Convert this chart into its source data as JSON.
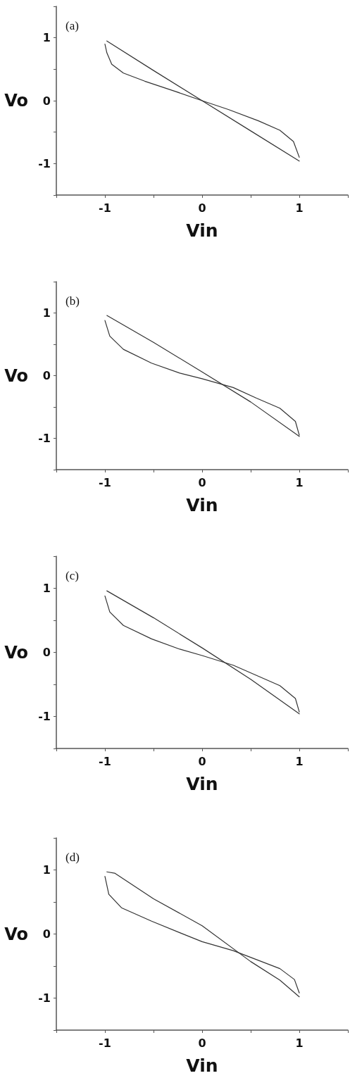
{
  "chart_data": [
    {
      "type": "line",
      "title": "(a)",
      "xlabel": "Vin",
      "ylabel": "Vo",
      "xlim": [
        -1.5,
        1.5
      ],
      "ylim": [
        -1.5,
        1.5
      ],
      "xticks": [
        {
          "value": -1.5,
          "label": null
        },
        -1,
        {
          "value": -0.5,
          "label": null
        },
        0,
        {
          "value": 0.5,
          "label": null
        },
        1,
        {
          "value": 1.5,
          "label": null
        }
      ],
      "yticks": [
        {
          "value": -1.5,
          "label": null
        },
        -1,
        {
          "value": -0.5,
          "label": null
        },
        0,
        {
          "value": 0.5,
          "label": null
        },
        1,
        {
          "value": 1.5,
          "label": null
        }
      ],
      "series": [
        {
          "color": "#333333",
          "x": [
            -0.98,
            -0.5,
            0,
            0.5,
            1.0
          ],
          "values": [
            0.95,
            0.48,
            0,
            -0.48,
            -0.96
          ]
        },
        {
          "color": "#333333",
          "x": [
            1.0,
            0.94,
            0.8,
            0.58,
            0.27,
            0,
            -0.28,
            -0.59,
            -0.81,
            -0.93,
            -0.98,
            -1.0
          ],
          "values": [
            -0.9,
            -0.65,
            -0.47,
            -0.32,
            -0.14,
            0,
            0.15,
            0.31,
            0.44,
            0.58,
            0.76,
            0.9
          ]
        }
      ]
    },
    {
      "type": "line",
      "title": "(b)",
      "xlabel": "Vin",
      "ylabel": "Vo",
      "xlim": [
        -1.5,
        1.5
      ],
      "ylim": [
        -1.5,
        1.5
      ],
      "xticks": [
        {
          "value": -1.5,
          "label": null
        },
        -1,
        {
          "value": -0.5,
          "label": null
        },
        0,
        {
          "value": 0.5,
          "label": null
        },
        1,
        {
          "value": 1.5,
          "label": null
        }
      ],
      "yticks": [
        {
          "value": -1.5,
          "label": null
        },
        -1,
        {
          "value": -0.5,
          "label": null
        },
        0,
        {
          "value": 0.5,
          "label": null
        },
        1,
        {
          "value": 1.5,
          "label": null
        }
      ],
      "series": [
        {
          "color": "#333333",
          "x": [
            -0.98,
            -0.5,
            0,
            0.5,
            1.0
          ],
          "values": [
            0.96,
            0.53,
            0.06,
            -0.42,
            -0.97
          ]
        },
        {
          "color": "#333333",
          "x": [
            1.0,
            0.96,
            0.8,
            0.56,
            0.32,
            0,
            -0.23,
            -0.52,
            -0.81,
            -0.95,
            -1.0
          ],
          "values": [
            -0.95,
            -0.73,
            -0.52,
            -0.36,
            -0.19,
            -0.05,
            0.04,
            0.2,
            0.42,
            0.63,
            0.88
          ]
        }
      ]
    },
    {
      "type": "line",
      "title": "(c)",
      "xlabel": "Vin",
      "ylabel": "Vo",
      "xlim": [
        -1.5,
        1.5
      ],
      "ylim": [
        -1.5,
        1.5
      ],
      "xticks": [
        {
          "value": -1.5,
          "label": null
        },
        -1,
        {
          "value": -0.5,
          "label": null
        },
        0,
        {
          "value": 0.5,
          "label": null
        },
        1,
        {
          "value": 1.5,
          "label": null
        }
      ],
      "yticks": [
        {
          "value": -1.5,
          "label": null
        },
        -1,
        {
          "value": -0.5,
          "label": null
        },
        0,
        {
          "value": 0.5,
          "label": null
        },
        1,
        {
          "value": 1.5,
          "label": null
        }
      ],
      "series": [
        {
          "color": "#333333",
          "x": [
            -0.98,
            -0.5,
            0,
            0.5,
            1.0
          ],
          "values": [
            0.96,
            0.54,
            0.07,
            -0.42,
            -0.96
          ]
        },
        {
          "color": "#333333",
          "x": [
            1.0,
            0.96,
            0.8,
            0.56,
            0.32,
            0,
            -0.23,
            -0.52,
            -0.81,
            -0.95,
            -1.0
          ],
          "values": [
            -0.93,
            -0.72,
            -0.52,
            -0.36,
            -0.2,
            -0.05,
            0.05,
            0.21,
            0.42,
            0.63,
            0.88
          ]
        }
      ]
    },
    {
      "type": "line",
      "title": "(d)",
      "xlabel": "Vin",
      "ylabel": "Vo",
      "xlim": [
        -1.5,
        1.5
      ],
      "ylim": [
        -1.5,
        1.5
      ],
      "xticks": [
        {
          "value": -1.5,
          "label": null
        },
        -1,
        {
          "value": -0.5,
          "label": null
        },
        0,
        {
          "value": 0.5,
          "label": null
        },
        1,
        {
          "value": 1.5,
          "label": null
        }
      ],
      "yticks": [
        {
          "value": -1.5,
          "label": null
        },
        -1,
        {
          "value": -0.5,
          "label": null
        },
        0,
        {
          "value": 0.5,
          "label": null
        },
        1,
        {
          "value": 1.5,
          "label": null
        }
      ],
      "series": [
        {
          "color": "#333333",
          "x": [
            -0.98,
            -0.9,
            -0.5,
            0,
            0.5,
            0.8,
            1.0
          ],
          "values": [
            0.97,
            0.95,
            0.55,
            0.13,
            -0.43,
            -0.72,
            -0.98
          ]
        },
        {
          "color": "#333333",
          "x": [
            1.0,
            0.95,
            0.8,
            0.56,
            0.32,
            0,
            -0.23,
            -0.52,
            -0.83,
            -0.96,
            -1.0
          ],
          "values": [
            -0.92,
            -0.71,
            -0.54,
            -0.4,
            -0.26,
            -0.12,
            0.02,
            0.2,
            0.41,
            0.62,
            0.9
          ]
        }
      ]
    }
  ]
}
